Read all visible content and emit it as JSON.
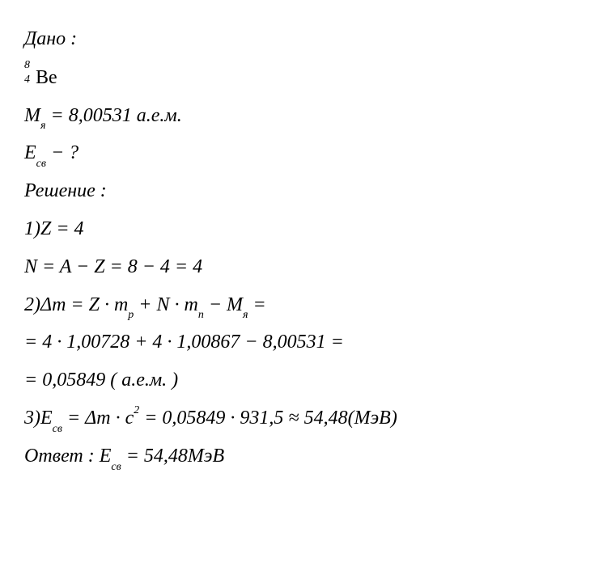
{
  "given_label": "Дано :",
  "isotope": {
    "mass": "8",
    "atomic": "4",
    "element": "Be"
  },
  "mass_line": {
    "symbol": "M",
    "sub": "я",
    "eq": " = 8,00531 ",
    "unit": "а.е.м."
  },
  "find_line": {
    "symbol": "E",
    "sub": "св",
    "tail": " − ?"
  },
  "solution_label": "Решение :",
  "step1": {
    "prefix": "1)",
    "body": "Z = 4"
  },
  "step_n": "N = A − Z = 8 − 4 = 4",
  "step2": {
    "prefix": "2)",
    "dm": "Δm = Z · m",
    "p_sub": "p",
    "mid": " + N · m",
    "n_sub": "n",
    "mid2": " − M",
    "ya_sub": "я",
    "tail": " ="
  },
  "step2b": "= 4 · 1,00728 + 4 · 1,00867 − 8,00531 =",
  "step2c": {
    "val": "= 0,05849 ",
    "unit": "( а.е.м. )"
  },
  "step3": {
    "prefix": "3)",
    "e": "E",
    "esub": "св",
    "body1": " = Δm · c",
    "sup2": "2",
    "body2": " = 0,05849 · 931,5 ≈ 54,48",
    "unit": "(МэВ)"
  },
  "answer": {
    "label": "Ответ : ",
    "e": "E",
    "esub": "св",
    "val": " = 54,48",
    "unit": "МэВ"
  }
}
